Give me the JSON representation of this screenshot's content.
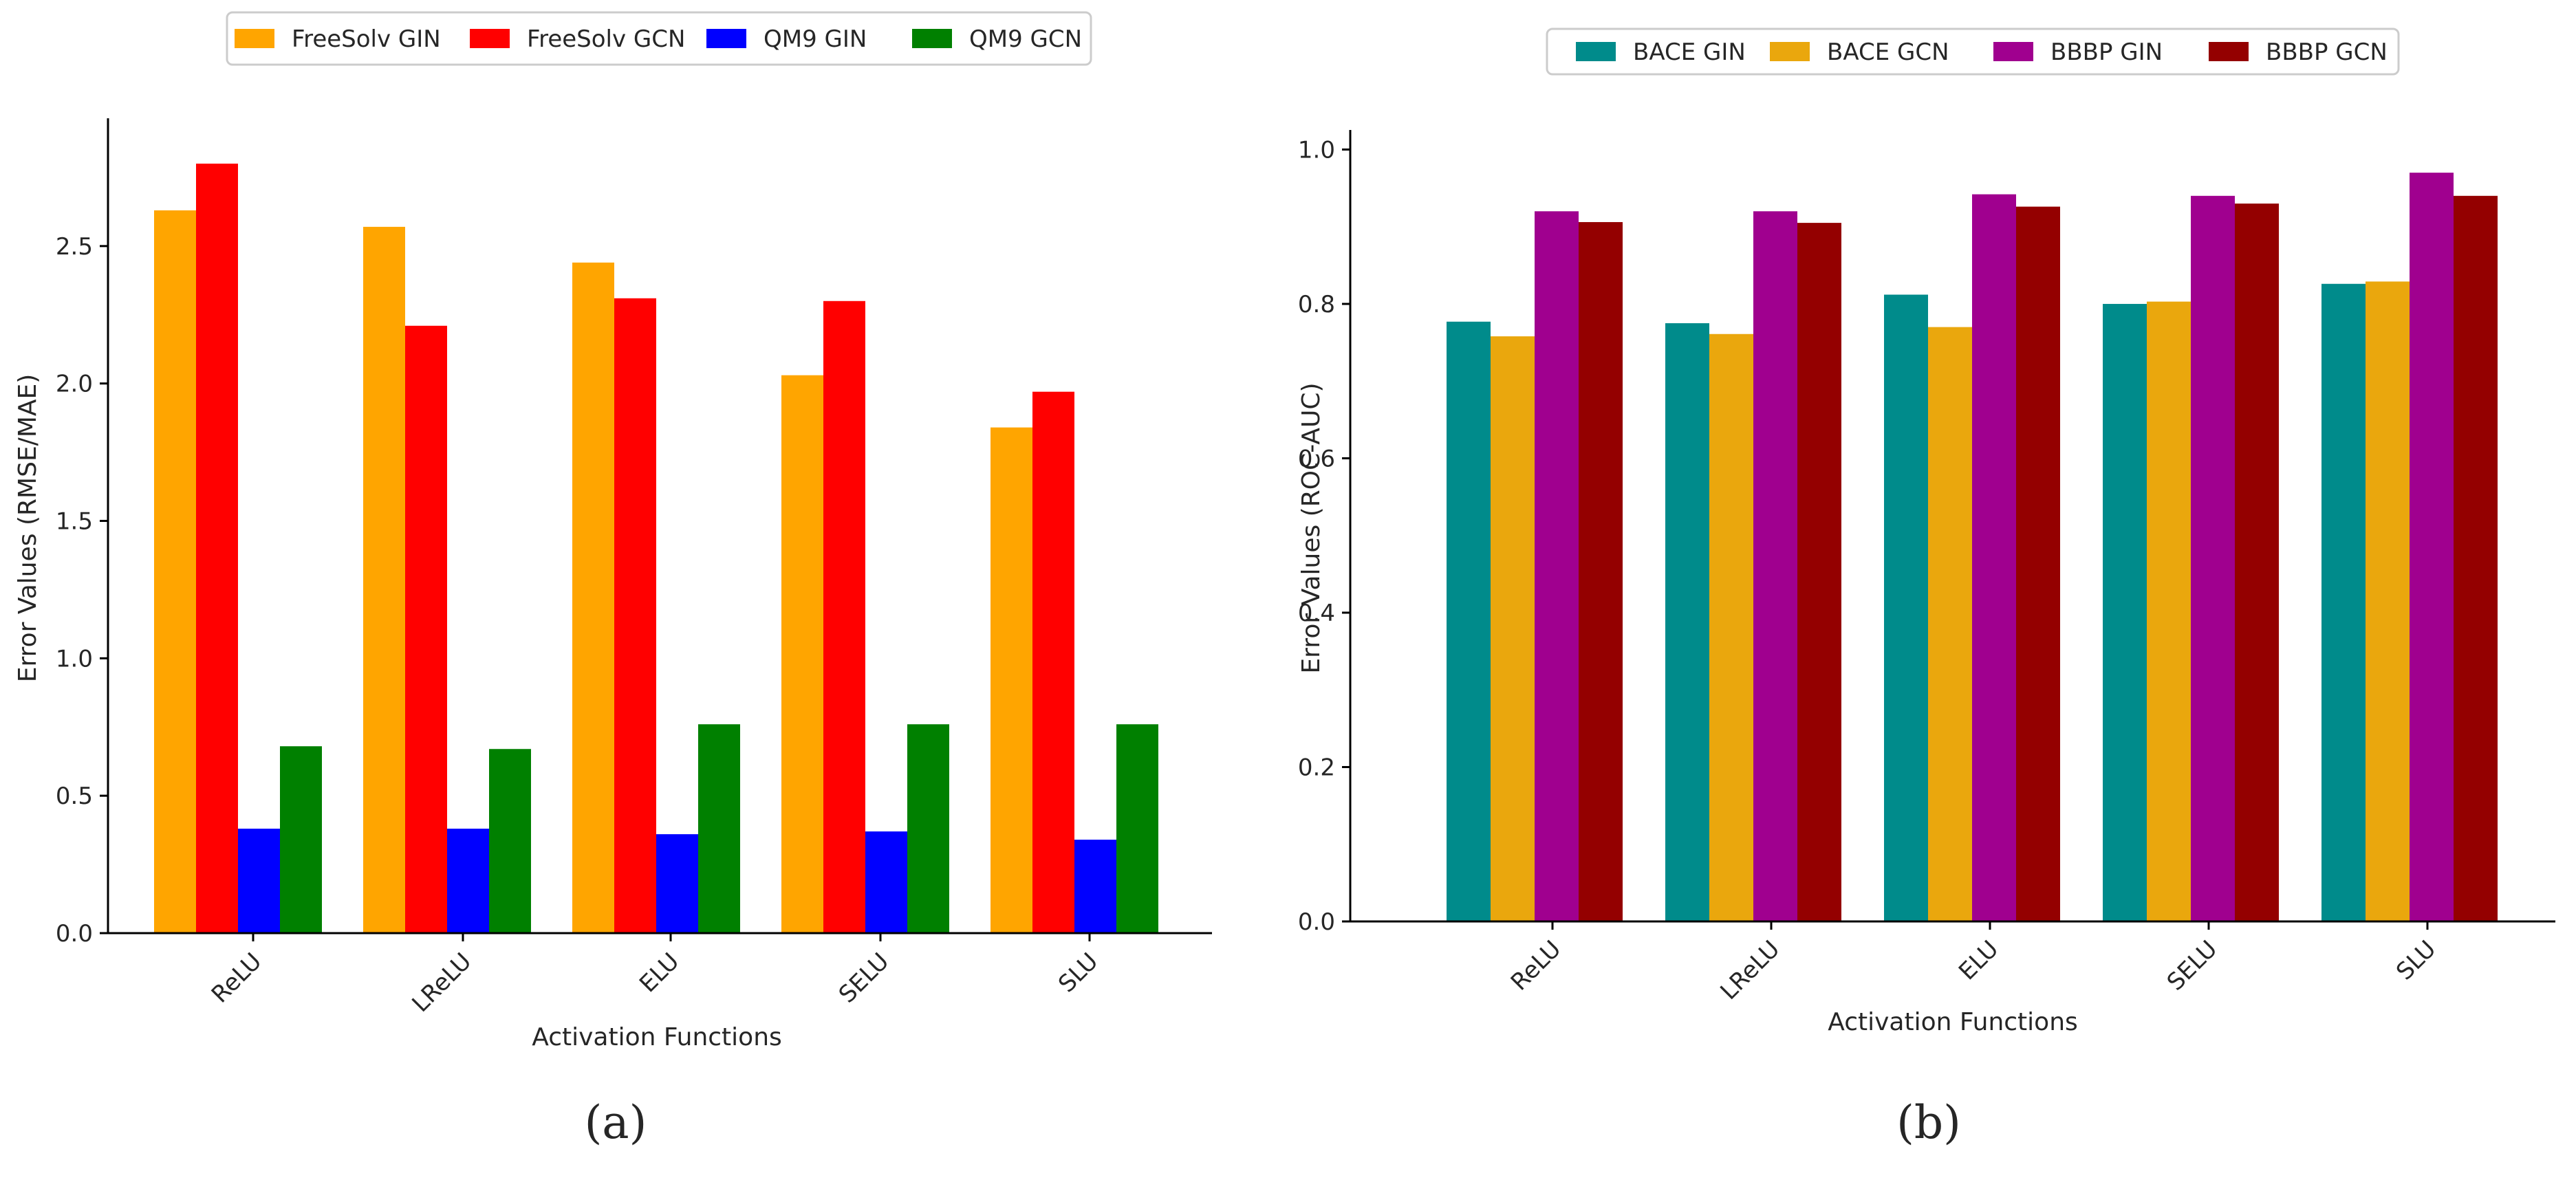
{
  "chart_data": [
    {
      "id": "a",
      "type": "bar",
      "panel_label": "(a)",
      "xlabel": "Activation Functions",
      "ylabel": "Error Values (RMSE/MAE)",
      "categories": [
        "ReLU",
        "LReLU",
        "ELU",
        "SELU",
        "SLU"
      ],
      "ylim": [
        0,
        2.95
      ],
      "yticks": [
        "0.0",
        "0.5",
        "1.0",
        "1.5",
        "2.0",
        "2.5"
      ],
      "legend_position": "top",
      "series": [
        {
          "name": "FreeSolv GIN",
          "color": "#ffa500",
          "values": [
            2.63,
            2.57,
            2.44,
            2.03,
            1.84
          ]
        },
        {
          "name": "FreeSolv GCN",
          "color": "#ff0000",
          "values": [
            2.8,
            2.21,
            2.31,
            2.3,
            1.97
          ]
        },
        {
          "name": "QM9 GIN",
          "color": "#0000ff",
          "values": [
            0.38,
            0.38,
            0.36,
            0.37,
            0.34
          ]
        },
        {
          "name": "QM9 GCN",
          "color": "#008000",
          "values": [
            0.68,
            0.67,
            0.76,
            0.76,
            0.76
          ]
        }
      ]
    },
    {
      "id": "b",
      "type": "bar",
      "panel_label": "(b)",
      "xlabel": "Activation Functions",
      "ylabel": "Error Values (ROC-AUC)",
      "categories": [
        "ReLU",
        "LReLU",
        "ELU",
        "SELU",
        "SLU"
      ],
      "ylim": [
        0,
        1.02
      ],
      "yticks": [
        "0.0",
        "0.2",
        "0.4",
        "0.6",
        "0.8",
        "1.0"
      ],
      "legend_position": "top",
      "series": [
        {
          "name": "BACE GIN",
          "color": "#008b8b",
          "values": [
            0.777,
            0.775,
            0.812,
            0.8,
            0.826
          ]
        },
        {
          "name": "BACE GCN",
          "color": "#eaa70d",
          "values": [
            0.758,
            0.761,
            0.77,
            0.803,
            0.829
          ]
        },
        {
          "name": "BBBP GIN",
          "color": "#a0008f",
          "values": [
            0.92,
            0.92,
            0.942,
            0.94,
            0.97
          ]
        },
        {
          "name": "BBBP GCN",
          "color": "#940000",
          "values": [
            0.906,
            0.905,
            0.926,
            0.93,
            0.94
          ]
        }
      ]
    }
  ]
}
